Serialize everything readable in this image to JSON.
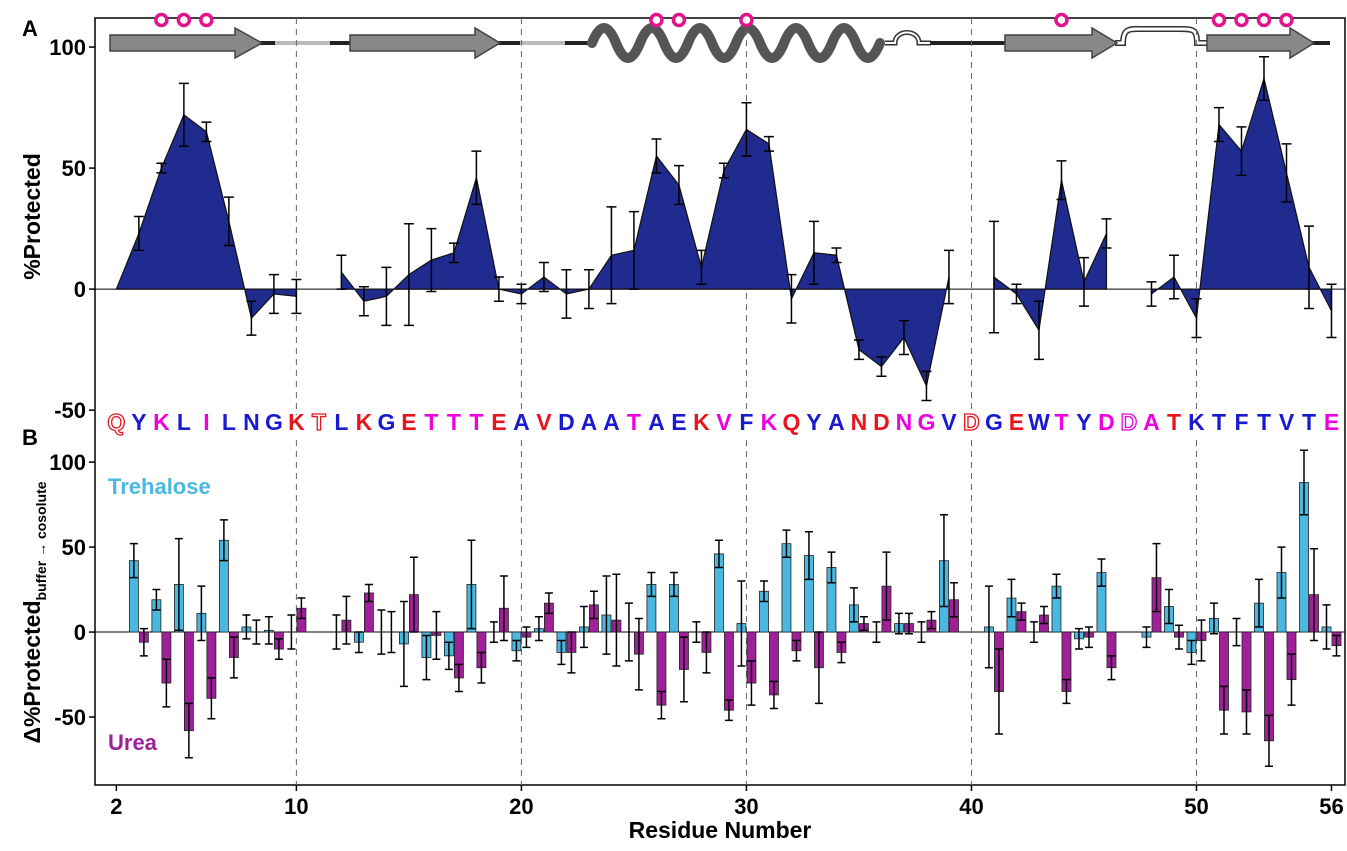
{
  "chart_data": [
    {
      "type": "area",
      "panel": "A",
      "ylabel": "%Protected",
      "color": "#1f2b8f",
      "xlim": [
        1.05,
        56.6
      ],
      "ylim": [
        -52,
        112
      ],
      "yticks": [
        100,
        50,
        0,
        -50
      ],
      "xticks": [
        2,
        10,
        20,
        30,
        40,
        50,
        56
      ],
      "x": [
        2,
        3,
        4,
        5,
        6,
        7,
        8,
        9,
        10,
        11,
        12,
        13,
        14,
        15,
        16,
        17,
        18,
        19,
        20,
        21,
        22,
        23,
        24,
        25,
        26,
        27,
        28,
        29,
        30,
        31,
        32,
        33,
        34,
        35,
        36,
        37,
        38,
        39,
        40,
        41,
        42,
        43,
        44,
        45,
        46,
        47,
        48,
        49,
        50,
        51,
        52,
        53,
        54,
        55,
        56
      ],
      "values": [
        0,
        23,
        50,
        72,
        65,
        28,
        -12,
        -2,
        -3,
        null,
        7,
        -5,
        -3,
        6,
        12,
        15,
        46,
        0,
        -2,
        5,
        -2,
        0,
        14,
        16,
        55,
        43,
        9,
        49,
        66,
        60,
        -4,
        15,
        14,
        -25,
        -32,
        -20,
        -40,
        5,
        null,
        5,
        -2,
        -17,
        45,
        3,
        23,
        null,
        -2,
        5,
        -12,
        68,
        57,
        87,
        48,
        9,
        -9
      ],
      "errors": [
        null,
        7,
        2,
        13,
        4,
        10,
        7,
        8,
        7,
        null,
        7,
        6,
        12,
        21,
        13,
        4,
        11,
        5,
        4,
        6,
        10,
        8,
        20,
        16,
        7,
        8,
        7,
        3,
        11,
        3,
        10,
        13,
        3,
        4,
        4,
        7,
        6,
        11,
        null,
        23,
        4,
        12,
        8,
        10,
        6,
        null,
        5,
        9,
        8,
        7,
        10,
        9,
        12,
        17,
        11
      ],
      "markers": [
        4,
        5,
        6,
        26,
        27,
        30,
        44,
        51,
        52,
        53,
        54
      ],
      "sequence": [
        "Q",
        "Y",
        "K",
        "L",
        "I",
        "L",
        "N",
        "G",
        "K",
        "T",
        "L",
        "K",
        "G",
        "E",
        "T",
        "T",
        "T",
        "E",
        "A",
        "V",
        "D",
        "A",
        "A",
        "T",
        "A",
        "E",
        "K",
        "V",
        "F",
        "K",
        "Q",
        "Y",
        "A",
        "N",
        "D",
        "N",
        "G",
        "V",
        "D",
        "G",
        "E",
        "W",
        "T",
        "Y",
        "D",
        "D",
        "A",
        "T",
        "K",
        "T",
        "F",
        "T",
        "V",
        "T",
        "E"
      ],
      "sequence_colors": [
        "#e8141e",
        "#1a1ad0",
        "#f000e0",
        "#1a1ad0",
        "#f000e0",
        "#1a1ad0",
        "#1a1ad0",
        "#1a1ad0",
        "#e8141e",
        "#e8141e",
        "#1a1ad0",
        "#e8141e",
        "#1a1ad0",
        "#e8141e",
        "#f000e0",
        "#f000e0",
        "#f000e0",
        "#e8141e",
        "#1a1ad0",
        "#e8141e",
        "#1a1ad0",
        "#1a1ad0",
        "#1a1ad0",
        "#f000e0",
        "#1a1ad0",
        "#1a1ad0",
        "#e8141e",
        "#f000e0",
        "#1a1ad0",
        "#f000e0",
        "#e8141e",
        "#1a1ad0",
        "#1a1ad0",
        "#e8141e",
        "#e8141e",
        "#f000e0",
        "#f000e0",
        "#1a1ad0",
        "#e8141e",
        "#1a1ad0",
        "#e8141e",
        "#1a1ad0",
        "#f000e0",
        "#1a1ad0",
        "#f000e0",
        "#f000e0",
        "#f000e0",
        "#e8141e",
        "#1a1ad0",
        "#1a1ad0",
        "#1a1ad0",
        "#1a1ad0",
        "#1a1ad0",
        "#1a1ad0",
        "#f000e0"
      ],
      "sequence_outline": [
        0,
        9,
        38,
        45
      ]
    },
    {
      "type": "bar",
      "panel": "B",
      "ylabel": "Δ%Protected",
      "ylabel_sub": "buffer → cosolute",
      "xlabel": "Residue Number",
      "xlim": [
        1.05,
        56.6
      ],
      "ylim": [
        -90,
        113
      ],
      "yticks": [
        100,
        50,
        0,
        -50
      ],
      "xticks": [
        2,
        10,
        20,
        30,
        40,
        50,
        56
      ],
      "x": [
        2,
        3,
        4,
        5,
        6,
        7,
        8,
        9,
        10,
        11,
        12,
        13,
        14,
        15,
        16,
        17,
        18,
        19,
        20,
        21,
        22,
        23,
        24,
        25,
        26,
        27,
        28,
        29,
        30,
        31,
        32,
        33,
        34,
        35,
        36,
        37,
        38,
        39,
        40,
        41,
        42,
        43,
        44,
        45,
        46,
        47,
        48,
        49,
        50,
        51,
        52,
        53,
        54,
        55,
        56
      ],
      "series": [
        {
          "name": "Trehalose",
          "color": "#4ab8e0",
          "values": [
            null,
            42,
            19,
            28,
            11,
            54,
            3,
            1,
            0,
            null,
            0,
            -6,
            0,
            -7,
            -15,
            -14,
            28,
            0,
            -11,
            2,
            -12,
            3,
            10,
            0,
            28,
            28,
            0,
            46,
            5,
            24,
            52,
            45,
            38,
            16,
            0,
            5,
            0,
            42,
            null,
            3,
            20,
            0,
            27,
            -4,
            35,
            null,
            -3,
            15,
            -12,
            8,
            0,
            17,
            35,
            88,
            3
          ],
          "errors": [
            null,
            10,
            6,
            27,
            16,
            12,
            7,
            8,
            10,
            null,
            10,
            6,
            13,
            25,
            13,
            8,
            26,
            6,
            6,
            7,
            7,
            12,
            23,
            17,
            7,
            7,
            6,
            8,
            25,
            6,
            8,
            14,
            9,
            10,
            6,
            6,
            6,
            27,
            null,
            24,
            11,
            6,
            7,
            6,
            8,
            null,
            6,
            10,
            7,
            9,
            8,
            14,
            15,
            19,
            13
          ]
        },
        {
          "name": "Urea",
          "color": "#a0209a",
          "values": [
            null,
            -6,
            -30,
            -58,
            -39,
            -15,
            0,
            -10,
            14,
            null,
            7,
            23,
            0,
            22,
            -2,
            -27,
            -21,
            14,
            -3,
            17,
            -12,
            16,
            7,
            -13,
            -43,
            -22,
            -12,
            -46,
            -30,
            -37,
            -11,
            -21,
            -12,
            5,
            27,
            5,
            7,
            19,
            null,
            -35,
            12,
            10,
            -35,
            -3,
            -21,
            null,
            32,
            -3,
            -5,
            -46,
            -47,
            -64,
            -28,
            22,
            -8
          ],
          "errors": [
            null,
            8,
            14,
            16,
            12,
            12,
            7,
            6,
            6,
            null,
            14,
            5,
            12,
            22,
            14,
            8,
            9,
            19,
            6,
            6,
            12,
            8,
            27,
            21,
            8,
            19,
            12,
            6,
            13,
            8,
            6,
            21,
            6,
            4,
            20,
            6,
            5,
            10,
            null,
            25,
            5,
            5,
            7,
            6,
            7,
            null,
            20,
            7,
            12,
            14,
            13,
            15,
            15,
            27,
            6
          ]
        }
      ]
    }
  ]
}
